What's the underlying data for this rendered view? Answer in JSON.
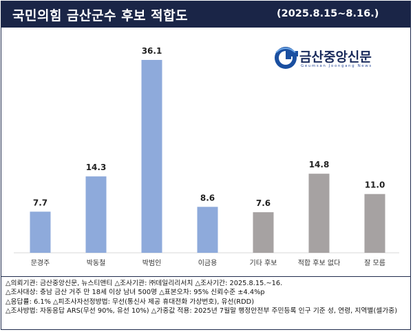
{
  "header": {
    "title": "국민의힘 금산군수 후보 적합도",
    "subtitle": "(2025.8.15~8.16.)"
  },
  "logo": {
    "text": "금산중앙신문",
    "sub": "Geumsan Joongang News",
    "icon": "g-logo-icon",
    "color": "#1a2b5c"
  },
  "chart_data": {
    "type": "bar",
    "categories": [
      "문경주",
      "박동철",
      "박범인",
      "이금용",
      "기타 후보",
      "적합 후보 없다",
      "잘 모름"
    ],
    "values": [
      7.7,
      14.3,
      36.1,
      8.6,
      7.6,
      14.8,
      11.0
    ],
    "value_labels": [
      "7.7",
      "14.3",
      "36.1",
      "8.6",
      "7.6",
      "14.8",
      "11.0"
    ],
    "colors": [
      "#8eaadb",
      "#8eaadb",
      "#8eaadb",
      "#8eaadb",
      "#a6a2a2",
      "#a6a2a2",
      "#a6a2a2"
    ],
    "ylim": [
      0,
      36.1
    ],
    "grid": false,
    "legend": "none"
  },
  "notes": [
    "△의뢰기관: 금산중앙신문, 뉴스티앤티 △조사기관: ㈜데일리리서치 △조사기간: 2025.8.15.~16.",
    "△조사대상: 충남 금산 거주 만 18세 이상 남녀 500명 △표본오차: 95% 신뢰수준 ±4.4%p",
    "△응답률: 6.1% △피조사자선정방법: 무선(통신사 제공 휴대전화 가상번호), 유선(RDD)",
    "△조사방법: 자동응답 ARS(무선 90%, 유선 10%) △가중값 적용: 2025년 7월말 행정안전부 주민등록 인구 기준 성, 연령, 지역별(셀가중)"
  ]
}
